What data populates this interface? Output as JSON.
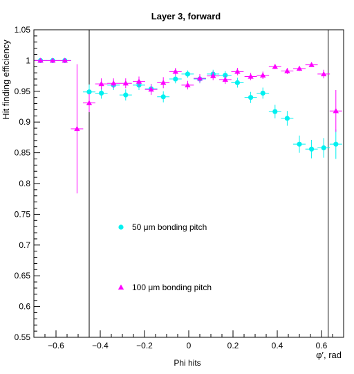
{
  "chart_data": {
    "type": "scatter",
    "title": "Layer 3, forward",
    "xlabel": "Phi hits",
    "ylabel": "Hit finding efficiency",
    "x_axis_tag": "φ′, rad",
    "xlim": [
      -0.7,
      0.7
    ],
    "ylim": [
      0.55,
      1.05
    ],
    "xticks": [
      -0.6,
      -0.4,
      -0.2,
      0,
      0.2,
      0.4,
      0.6
    ],
    "xtick_labels": [
      "−0.6",
      "−0.4",
      "−0.2",
      "0",
      "0.2",
      "0.4",
      "0.6"
    ],
    "yticks": [
      0.55,
      0.6,
      0.65,
      0.7,
      0.75,
      0.8,
      0.85,
      0.9,
      0.95,
      1,
      1.05
    ],
    "ytick_labels": [
      "0.55",
      "0.6",
      "0.65",
      "0.7",
      "0.75",
      "0.8",
      "0.85",
      "0.9",
      "0.95",
      "1",
      "1.05"
    ],
    "vertical_lines": [
      -0.45,
      0.63
    ],
    "x_bin_halfwidth": 0.028,
    "grid": false,
    "series": [
      {
        "name": "50 μm bonding pitch",
        "marker": "circle",
        "color": "#00f0f0",
        "x": [
          -0.67,
          -0.615,
          -0.56,
          -0.45,
          -0.395,
          -0.34,
          -0.285,
          -0.225,
          -0.17,
          -0.115,
          -0.06,
          -0.005,
          0.05,
          0.11,
          0.165,
          0.22,
          0.28,
          0.335,
          0.39,
          0.445,
          0.5,
          0.555,
          0.61,
          0.665
        ],
        "y": [
          1.0,
          1.0,
          1.0,
          0.949,
          0.947,
          0.96,
          0.944,
          0.96,
          0.954,
          0.941,
          0.97,
          0.978,
          0.97,
          0.978,
          0.976,
          0.964,
          0.94,
          0.947,
          0.917,
          0.906,
          0.864,
          0.856,
          0.858,
          0.864
        ],
        "yerr": [
          0.002,
          0.002,
          0.002,
          0.012,
          0.009,
          0.008,
          0.009,
          0.008,
          0.008,
          0.009,
          0.007,
          0.006,
          0.007,
          0.007,
          0.007,
          0.008,
          0.009,
          0.009,
          0.011,
          0.012,
          0.014,
          0.015,
          0.016,
          0.024
        ]
      },
      {
        "name": "100 μm bonding pitch",
        "marker": "triangle",
        "color": "#ff00ff",
        "x": [
          -0.67,
          -0.615,
          -0.56,
          -0.505,
          -0.45,
          -0.395,
          -0.34,
          -0.285,
          -0.225,
          -0.17,
          -0.115,
          -0.06,
          -0.005,
          0.05,
          0.11,
          0.165,
          0.22,
          0.28,
          0.335,
          0.39,
          0.445,
          0.5,
          0.555,
          0.61,
          0.665
        ],
        "y": [
          1.0,
          1.0,
          1.0,
          0.889,
          0.931,
          0.962,
          0.963,
          0.963,
          0.966,
          0.953,
          0.964,
          0.982,
          0.96,
          0.971,
          0.975,
          0.969,
          0.982,
          0.974,
          0.976,
          0.99,
          0.983,
          0.987,
          0.993,
          0.978,
          0.918
        ],
        "yerr": [
          0.002,
          0.002,
          0.002,
          0.105,
          0.015,
          0.009,
          0.008,
          0.008,
          0.008,
          0.009,
          0.009,
          0.006,
          0.007,
          0.007,
          0.007,
          0.007,
          0.006,
          0.006,
          0.006,
          0.004,
          0.005,
          0.004,
          0.003,
          0.007,
          0.034
        ]
      }
    ]
  }
}
